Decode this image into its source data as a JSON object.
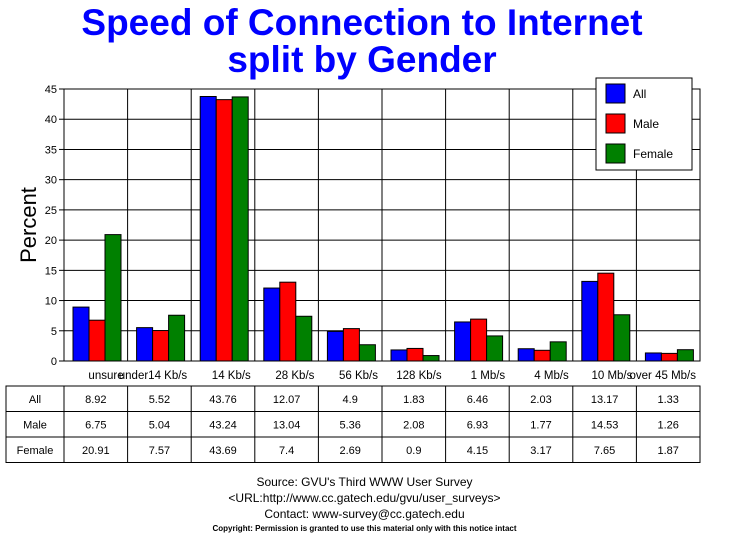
{
  "chart_data": {
    "type": "bar",
    "title": "Speed of Connection to Internet",
    "subtitle": "split by Gender",
    "ylabel": "Percent",
    "xlabel": "",
    "ylim": [
      0,
      45
    ],
    "yticks": [
      0,
      5,
      10,
      15,
      20,
      25,
      30,
      35,
      40,
      45
    ],
    "grid": true,
    "legend_position": "top-right",
    "categories": [
      "unsure",
      "under14 Kb/s",
      "14 Kb/s",
      "28 Kb/s",
      "56 Kb/s",
      "128 Kb/s",
      "1 Mb/s",
      "4 Mb/s",
      "10 Mb/s",
      "over 45 Mb/s"
    ],
    "series": [
      {
        "name": "All",
        "color": "#0000ff",
        "values": [
          8.92,
          5.52,
          43.76,
          12.07,
          4.9,
          1.83,
          6.46,
          2.03,
          13.17,
          1.33
        ]
      },
      {
        "name": "Male",
        "color": "#ff0000",
        "values": [
          6.75,
          5.04,
          43.24,
          13.04,
          5.36,
          2.08,
          6.93,
          1.77,
          14.53,
          1.26
        ]
      },
      {
        "name": "Female",
        "color": "#008000",
        "values": [
          20.91,
          7.57,
          43.69,
          7.4,
          2.69,
          0.9,
          4.15,
          3.17,
          7.65,
          1.87
        ]
      }
    ],
    "table": {
      "row_labels": [
        "All",
        "Male",
        "Female"
      ],
      "rows": [
        [
          "8.92",
          "5.52",
          "43.76",
          "12.07",
          "4.9",
          "1.83",
          "6.46",
          "2.03",
          "13.17",
          "1.33"
        ],
        [
          "6.75",
          "5.04",
          "43.24",
          "13.04",
          "5.36",
          "2.08",
          "6.93",
          "1.77",
          "14.53",
          "1.26"
        ],
        [
          "20.91",
          "7.57",
          "43.69",
          "7.4",
          "2.69",
          "0.9",
          "4.15",
          "3.17",
          "7.65",
          "1.87"
        ]
      ]
    }
  },
  "footer": {
    "source": "Source: GVU's Third WWW User Survey",
    "url": "<URL:http://www.cc.gatech.edu/gvu/user_surveys>",
    "contact": "Contact: www-survey@cc.gatech.edu",
    "copyright": "Copyright: Permission is granted to use this material only with this notice intact"
  }
}
